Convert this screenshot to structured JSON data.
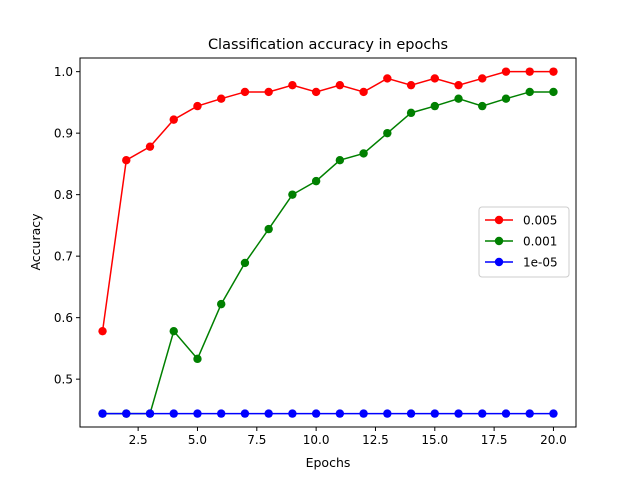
{
  "chart_data": {
    "type": "line",
    "title": "Classification accuracy in epochs",
    "xlabel": "Epochs",
    "ylabel": "Accuracy",
    "xlim": [
      0.05,
      20.95
    ],
    "ylim": [
      0.4222,
      1.0222
    ],
    "xticks": [
      "2.5",
      "5.0",
      "7.5",
      "10.0",
      "12.5",
      "15.0",
      "17.5",
      "20.0"
    ],
    "yticks": [
      "0.5",
      "0.6",
      "0.7",
      "0.8",
      "0.9",
      "1.0"
    ],
    "grid": false,
    "legend_position": "center-right",
    "x": [
      1,
      2,
      3,
      4,
      5,
      6,
      7,
      8,
      9,
      10,
      11,
      12,
      13,
      14,
      15,
      16,
      17,
      18,
      19,
      20
    ],
    "series": [
      {
        "name": "0.005",
        "color": "#ff0000",
        "marker": "circle",
        "values": [
          0.578,
          0.856,
          0.878,
          0.922,
          0.944,
          0.956,
          0.967,
          0.967,
          0.978,
          0.967,
          0.978,
          0.967,
          0.989,
          0.978,
          0.989,
          0.978,
          0.989,
          1.0,
          1.0,
          1.0
        ]
      },
      {
        "name": "0.001",
        "color": "#008000",
        "marker": "circle",
        "values": [
          0.444,
          0.444,
          0.444,
          0.578,
          0.533,
          0.622,
          0.689,
          0.744,
          0.8,
          0.822,
          0.856,
          0.867,
          0.9,
          0.933,
          0.944,
          0.956,
          0.944,
          0.956,
          0.967,
          0.967
        ]
      },
      {
        "name": "1e-05",
        "color": "#0000ff",
        "marker": "circle",
        "values": [
          0.444,
          0.444,
          0.444,
          0.444,
          0.444,
          0.444,
          0.444,
          0.444,
          0.444,
          0.444,
          0.444,
          0.444,
          0.444,
          0.444,
          0.444,
          0.444,
          0.444,
          0.444,
          0.444,
          0.444
        ]
      }
    ]
  }
}
